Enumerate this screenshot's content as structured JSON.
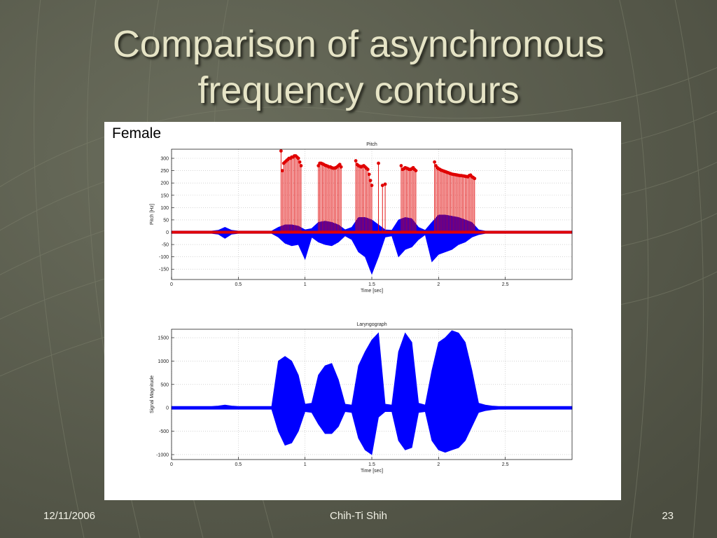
{
  "slide": {
    "title": "Comparison of asynchronous frequency contours",
    "label": "Female",
    "footer": {
      "date": "12/11/2006",
      "author": "Chih-Ti Shih",
      "page": "23"
    }
  },
  "chart_data": [
    {
      "type": "stem",
      "title": "Pitch",
      "xlabel": "Time [sec]",
      "ylabel": "Pitch [Hz]",
      "xlim": [
        0,
        3
      ],
      "ylim": [
        -192,
        337
      ],
      "xticks": [
        0,
        0.5,
        1,
        1.5,
        2,
        2.5
      ],
      "yticks": [
        -150,
        -100,
        -50,
        0,
        50,
        100,
        150,
        200,
        250,
        300
      ],
      "grid": true,
      "series": [
        {
          "mark": "area",
          "color": "#0000ff",
          "x": [
            0,
            0.05,
            0.1,
            0.15,
            0.2,
            0.25,
            0.3,
            0.35,
            0.4,
            0.45,
            0.5,
            0.55,
            0.6,
            0.65,
            0.7,
            0.75,
            0.8,
            0.85,
            0.9,
            0.95,
            1,
            1.05,
            1.1,
            1.15,
            1.2,
            1.25,
            1.3,
            1.35,
            1.4,
            1.45,
            1.5,
            1.55,
            1.6,
            1.65,
            1.7,
            1.75,
            1.8,
            1.85,
            1.9,
            1.95,
            2,
            2.05,
            2.1,
            2.15,
            2.2,
            2.25,
            2.3,
            2.35,
            2.4,
            2.45,
            2.5,
            2.55,
            2.6,
            2.65,
            2.7,
            2.75,
            2.8,
            2.85,
            2.9,
            2.95,
            3
          ],
          "values": [
            5,
            5,
            5,
            5,
            5,
            5,
            5,
            8,
            20,
            8,
            5,
            5,
            5,
            5,
            5,
            5,
            20,
            30,
            30,
            25,
            10,
            15,
            40,
            45,
            40,
            30,
            10,
            20,
            60,
            60,
            50,
            30,
            10,
            8,
            50,
            60,
            55,
            20,
            8,
            40,
            70,
            70,
            65,
            60,
            50,
            40,
            10,
            5,
            5,
            5,
            5,
            5,
            5,
            5,
            5,
            5,
            5,
            5,
            5,
            5,
            5
          ]
        },
        {
          "mark": "area",
          "color": "#0000ff",
          "x": [
            0,
            0.05,
            0.1,
            0.15,
            0.2,
            0.25,
            0.3,
            0.35,
            0.4,
            0.45,
            0.5,
            0.55,
            0.6,
            0.65,
            0.7,
            0.75,
            0.8,
            0.85,
            0.9,
            0.95,
            1,
            1.05,
            1.1,
            1.15,
            1.2,
            1.25,
            1.3,
            1.35,
            1.4,
            1.45,
            1.5,
            1.55,
            1.6,
            1.65,
            1.7,
            1.75,
            1.8,
            1.85,
            1.9,
            1.95,
            2,
            2.05,
            2.1,
            2.15,
            2.2,
            2.25,
            2.3,
            2.35,
            2.4,
            2.45,
            2.5,
            2.55,
            2.6,
            2.65,
            2.7,
            2.75,
            2.8,
            2.85,
            2.9,
            2.95,
            3
          ],
          "values": [
            -5,
            -5,
            -5,
            -5,
            -5,
            -5,
            -5,
            -8,
            -25,
            -8,
            -5,
            -5,
            -5,
            -5,
            -5,
            -5,
            -20,
            -45,
            -55,
            -50,
            -110,
            -20,
            -40,
            -50,
            -55,
            -40,
            -15,
            -30,
            -80,
            -100,
            -170,
            -100,
            -20,
            -15,
            -100,
            -70,
            -60,
            -30,
            -10,
            -120,
            -90,
            -80,
            -70,
            -50,
            -40,
            -20,
            -10,
            -5,
            -5,
            -5,
            -5,
            -5,
            -5,
            -5,
            -5,
            -5,
            -5,
            -5,
            -5,
            -5,
            -5
          ]
        },
        {
          "mark": "line",
          "color": "#e00000",
          "x": [
            0,
            3
          ],
          "values": [
            0,
            0
          ]
        },
        {
          "mark": "stem",
          "color": "#e00000",
          "x": [
            0.82,
            0.83,
            0.84,
            0.85,
            0.86,
            0.87,
            0.88,
            0.89,
            0.9,
            0.91,
            0.92,
            0.93,
            0.94,
            0.95,
            0.96,
            0.97,
            1.1,
            1.11,
            1.12,
            1.13,
            1.14,
            1.15,
            1.16,
            1.17,
            1.18,
            1.19,
            1.2,
            1.21,
            1.22,
            1.23,
            1.24,
            1.25,
            1.26,
            1.27,
            1.38,
            1.39,
            1.4,
            1.41,
            1.42,
            1.43,
            1.44,
            1.45,
            1.46,
            1.47,
            1.48,
            1.49,
            1.5,
            1.55,
            1.58,
            1.6,
            1.72,
            1.73,
            1.74,
            1.75,
            1.76,
            1.77,
            1.78,
            1.79,
            1.8,
            1.81,
            1.82,
            1.83,
            1.97,
            1.98,
            1.99,
            2,
            2.01,
            2.02,
            2.03,
            2.04,
            2.05,
            2.06,
            2.07,
            2.08,
            2.09,
            2.1,
            2.11,
            2.12,
            2.13,
            2.14,
            2.15,
            2.16,
            2.17,
            2.18,
            2.19,
            2.2,
            2.21,
            2.22,
            2.23,
            2.24,
            2.25,
            2.26,
            2.27
          ],
          "values": [
            330,
            250,
            280,
            285,
            290,
            295,
            300,
            300,
            305,
            305,
            310,
            310,
            305,
            300,
            285,
            270,
            270,
            280,
            280,
            278,
            275,
            272,
            270,
            268,
            265,
            265,
            262,
            260,
            260,
            262,
            265,
            270,
            275,
            265,
            290,
            275,
            270,
            268,
            265,
            268,
            270,
            265,
            260,
            255,
            235,
            210,
            190,
            280,
            190,
            195,
            270,
            255,
            258,
            262,
            260,
            258,
            255,
            255,
            258,
            262,
            255,
            250,
            285,
            270,
            262,
            258,
            255,
            252,
            250,
            248,
            246,
            244,
            242,
            240,
            238,
            236,
            235,
            234,
            233,
            232,
            231,
            230,
            230,
            229,
            228,
            227,
            226,
            225,
            230,
            232,
            225,
            222,
            218
          ]
        }
      ]
    },
    {
      "type": "line",
      "title": "Laryngograph",
      "xlabel": "Time [sec]",
      "ylabel": "Signal Magnitude",
      "xlim": [
        0,
        3
      ],
      "ylim": [
        -1105,
        1680
      ],
      "xticks": [
        0,
        0.5,
        1,
        1.5,
        2,
        2.5
      ],
      "yticks": [
        -1000,
        -500,
        0,
        500,
        1000,
        1500
      ],
      "grid": true,
      "series": [
        {
          "mark": "area",
          "color": "#0000ff",
          "x": [
            0,
            0.05,
            0.1,
            0.15,
            0.2,
            0.25,
            0.3,
            0.35,
            0.4,
            0.45,
            0.5,
            0.55,
            0.6,
            0.65,
            0.7,
            0.75,
            0.8,
            0.85,
            0.9,
            0.95,
            1,
            1.05,
            1.1,
            1.15,
            1.2,
            1.25,
            1.3,
            1.35,
            1.4,
            1.45,
            1.5,
            1.55,
            1.6,
            1.65,
            1.7,
            1.75,
            1.8,
            1.85,
            1.9,
            1.95,
            2,
            2.05,
            2.1,
            2.15,
            2.2,
            2.25,
            2.3,
            2.35,
            2.4,
            2.45,
            2.5,
            2.55,
            2.6,
            2.65,
            2.7,
            2.75,
            2.8,
            2.85,
            2.9,
            2.95,
            3
          ],
          "values": [
            30,
            30,
            30,
            30,
            30,
            30,
            30,
            40,
            60,
            40,
            30,
            30,
            30,
            30,
            30,
            30,
            1000,
            1100,
            1000,
            700,
            80,
            100,
            700,
            900,
            950,
            600,
            80,
            60,
            900,
            1200,
            1450,
            1600,
            80,
            60,
            1200,
            1600,
            1400,
            100,
            60,
            800,
            1400,
            1500,
            1650,
            1600,
            1400,
            800,
            100,
            60,
            40,
            30,
            30,
            30,
            30,
            30,
            30,
            30,
            30,
            30,
            30,
            30,
            30
          ]
        },
        {
          "mark": "area",
          "color": "#0000ff",
          "x": [
            0,
            0.05,
            0.1,
            0.15,
            0.2,
            0.25,
            0.3,
            0.35,
            0.4,
            0.45,
            0.5,
            0.55,
            0.6,
            0.65,
            0.7,
            0.75,
            0.8,
            0.85,
            0.9,
            0.95,
            1,
            1.05,
            1.1,
            1.15,
            1.2,
            1.25,
            1.3,
            1.35,
            1.4,
            1.45,
            1.5,
            1.55,
            1.6,
            1.65,
            1.7,
            1.75,
            1.8,
            1.85,
            1.9,
            1.95,
            2,
            2.05,
            2.1,
            2.15,
            2.2,
            2.25,
            2.3,
            2.35,
            2.4,
            2.45,
            2.5,
            2.55,
            2.6,
            2.65,
            2.7,
            2.75,
            2.8,
            2.85,
            2.9,
            2.95,
            3
          ],
          "values": [
            -30,
            -30,
            -30,
            -30,
            -30,
            -30,
            -30,
            -30,
            -30,
            -30,
            -30,
            -30,
            -30,
            -30,
            -30,
            -30,
            -500,
            -800,
            -750,
            -500,
            -80,
            -100,
            -350,
            -550,
            -550,
            -400,
            -80,
            -100,
            -650,
            -900,
            -1000,
            -200,
            -80,
            -80,
            -700,
            -900,
            -850,
            -100,
            -80,
            -700,
            -900,
            -950,
            -900,
            -850,
            -700,
            -400,
            -100,
            -60,
            -40,
            -30,
            -30,
            -30,
            -30,
            -30,
            -30,
            -30,
            -30,
            -30,
            -30,
            -30,
            -30
          ]
        }
      ]
    }
  ]
}
